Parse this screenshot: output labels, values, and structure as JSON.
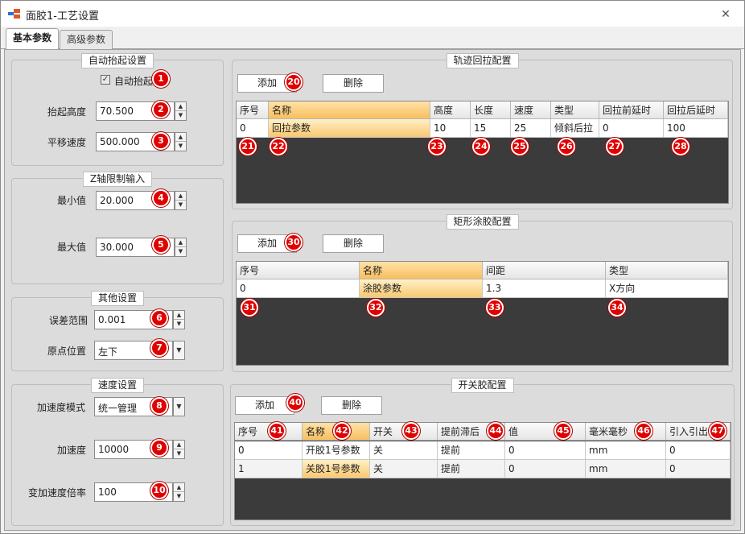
{
  "window": {
    "title": "面胶1-工艺设置",
    "close_glyph": "✕"
  },
  "tabs": [
    {
      "label": "基本参数"
    },
    {
      "label": "高级参数"
    }
  ],
  "auto_lift": {
    "title": "自动抬起设置",
    "checkbox_label": "自动抬起",
    "checkbox_checked": true,
    "lift_height_label": "抬起高度",
    "lift_height_value": "70.500",
    "move_speed_label": "平移速度",
    "move_speed_value": "500.000"
  },
  "z_limit": {
    "title": "Z轴限制输入",
    "min_label": "最小值",
    "min_value": "20.000",
    "max_label": "最大值",
    "max_value": "30.000"
  },
  "other": {
    "title": "其他设置",
    "tolerance_label": "误差范围",
    "tolerance_value": "0.001",
    "origin_label": "原点位置",
    "origin_value": "左下"
  },
  "speed": {
    "title": "速度设置",
    "accel_mode_label": "加速度模式",
    "accel_mode_value": "统一管理",
    "accel_label": "加速度",
    "accel_value": "10000",
    "jerk_label": "变加速度倍率",
    "jerk_value": "100"
  },
  "track": {
    "title": "轨迹回拉配置",
    "add_label": "添加",
    "delete_label": "删除",
    "columns": [
      "序号",
      "名称",
      "高度",
      "长度",
      "速度",
      "类型",
      "回拉前延时",
      "回拉后延时"
    ],
    "rows": [
      [
        "0",
        "回拉参数",
        "10",
        "15",
        "25",
        "倾斜后拉",
        "0",
        "100"
      ]
    ]
  },
  "rect": {
    "title": "矩形涂胶配置",
    "add_label": "添加",
    "delete_label": "删除",
    "columns": [
      "序号",
      "名称",
      "间距",
      "类型"
    ],
    "rows": [
      [
        "0",
        "涂胶参数",
        "1.3",
        "X方向"
      ]
    ]
  },
  "switch": {
    "title": "开关胶配置",
    "add_label": "添加",
    "delete_label": "删除",
    "columns": [
      "序号",
      "名称",
      "开关",
      "提前滞后",
      "值",
      "毫米毫秒",
      "引入引出"
    ],
    "rows": [
      [
        "0",
        "开胶1号参数",
        "关",
        "提前",
        "0",
        "mm",
        "0"
      ],
      [
        "1",
        "关胶1号参数",
        "关",
        "提前",
        "0",
        "mm",
        "0"
      ]
    ]
  },
  "badges": [
    "1",
    "2",
    "3",
    "4",
    "5",
    "6",
    "7",
    "8",
    "9",
    "10",
    "20",
    "21",
    "22",
    "23",
    "24",
    "25",
    "26",
    "27",
    "28",
    "30",
    "31",
    "32",
    "33",
    "34",
    "40",
    "41",
    "42",
    "43",
    "44",
    "45",
    "46",
    "47"
  ],
  "colors": {
    "badge": "#e00000",
    "selected_header": "#f7bf5f",
    "grid_background": "#3b3b3b"
  }
}
